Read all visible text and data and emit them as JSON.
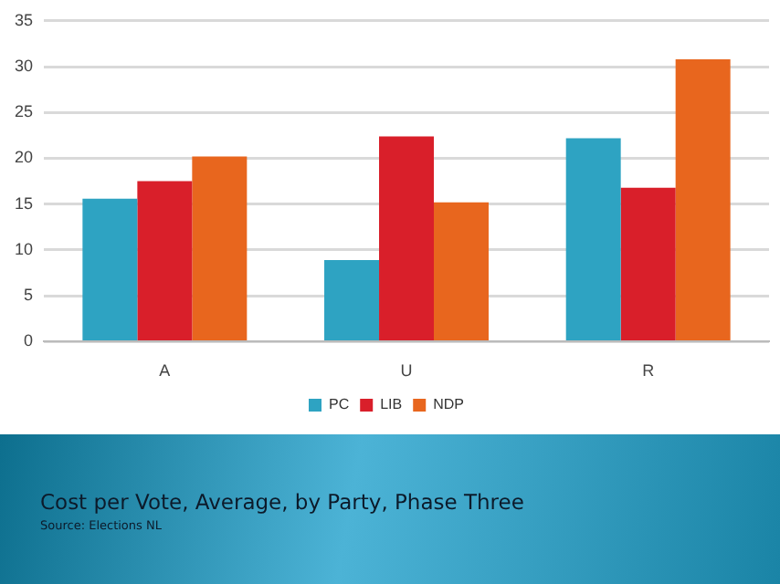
{
  "chart_data": {
    "type": "bar",
    "title": "Cost per Vote, Average, by Party, Phase Three",
    "annotations": [
      "Source:  Elections NL"
    ],
    "categories": [
      "A",
      "U",
      "R"
    ],
    "series": [
      {
        "name": "PC",
        "color": "#2ea3c2",
        "values": [
          15.6,
          8.9,
          22.2
        ]
      },
      {
        "name": "LIB",
        "color": "#d91f2a",
        "values": [
          17.5,
          22.4,
          16.8
        ]
      },
      {
        "name": "NDP",
        "color": "#e8661e",
        "values": [
          20.2,
          15.2,
          30.8
        ]
      }
    ],
    "ylim": [
      0,
      35
    ],
    "yticks": [
      0,
      5,
      10,
      15,
      20,
      25,
      30,
      35
    ],
    "grid": "y",
    "legend": "bottom"
  }
}
